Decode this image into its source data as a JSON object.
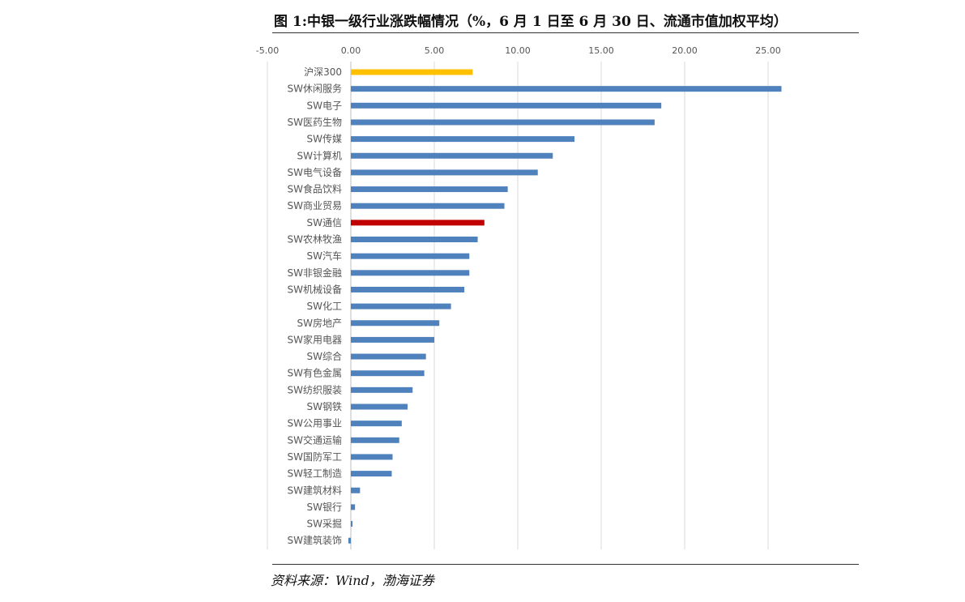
{
  "figure": {
    "title": "图 1:中银一级行业涨跌幅情况（%，6 月 1 日至 6 月 30 日、流通市值加权平均）",
    "source": "资料来源：Wind，渤海证券"
  },
  "chart_data": {
    "type": "bar",
    "orientation": "horizontal",
    "title": "图 1:中银一级行业涨跌幅情况（%，6 月 1 日至 6 月 30 日、流通市值加权平均）",
    "xlabel": "",
    "ylabel": "",
    "xlim": [
      -5,
      25
    ],
    "ticks": [
      -5,
      0,
      5,
      10,
      15,
      20,
      25
    ],
    "tick_labels": [
      "-5.00",
      "0.00",
      "5.00",
      "10.00",
      "15.00",
      "20.00",
      "25.00"
    ],
    "grid": true,
    "categories": [
      "沪深300",
      "SW休闲服务",
      "SW电子",
      "SW医药生物",
      "SW传媒",
      "SW计算机",
      "SW电气设备",
      "SW食品饮料",
      "SW商业贸易",
      "SW通信",
      "SW农林牧渔",
      "SW汽车",
      "SW非银金融",
      "SW机械设备",
      "SW化工",
      "SW房地产",
      "SW家用电器",
      "SW综合",
      "SW有色金属",
      "SW纺织服装",
      "SW钢铁",
      "SW公用事业",
      "SW交通运输",
      "SW国防军工",
      "SW轻工制造",
      "SW建筑材料",
      "SW银行",
      "SW采掘",
      "SW建筑装饰"
    ],
    "values": [
      7.3,
      25.8,
      18.6,
      18.2,
      13.4,
      12.1,
      11.2,
      9.4,
      9.2,
      8.0,
      7.6,
      7.1,
      7.1,
      6.8,
      6.0,
      5.3,
      5.0,
      4.5,
      4.4,
      3.7,
      3.4,
      3.05,
      2.9,
      2.5,
      2.45,
      0.55,
      0.25,
      0.1,
      -0.15
    ],
    "colors": {
      "default": "#4f81bd",
      "沪深300": "#ffc000",
      "SW通信": "#c00000"
    }
  }
}
